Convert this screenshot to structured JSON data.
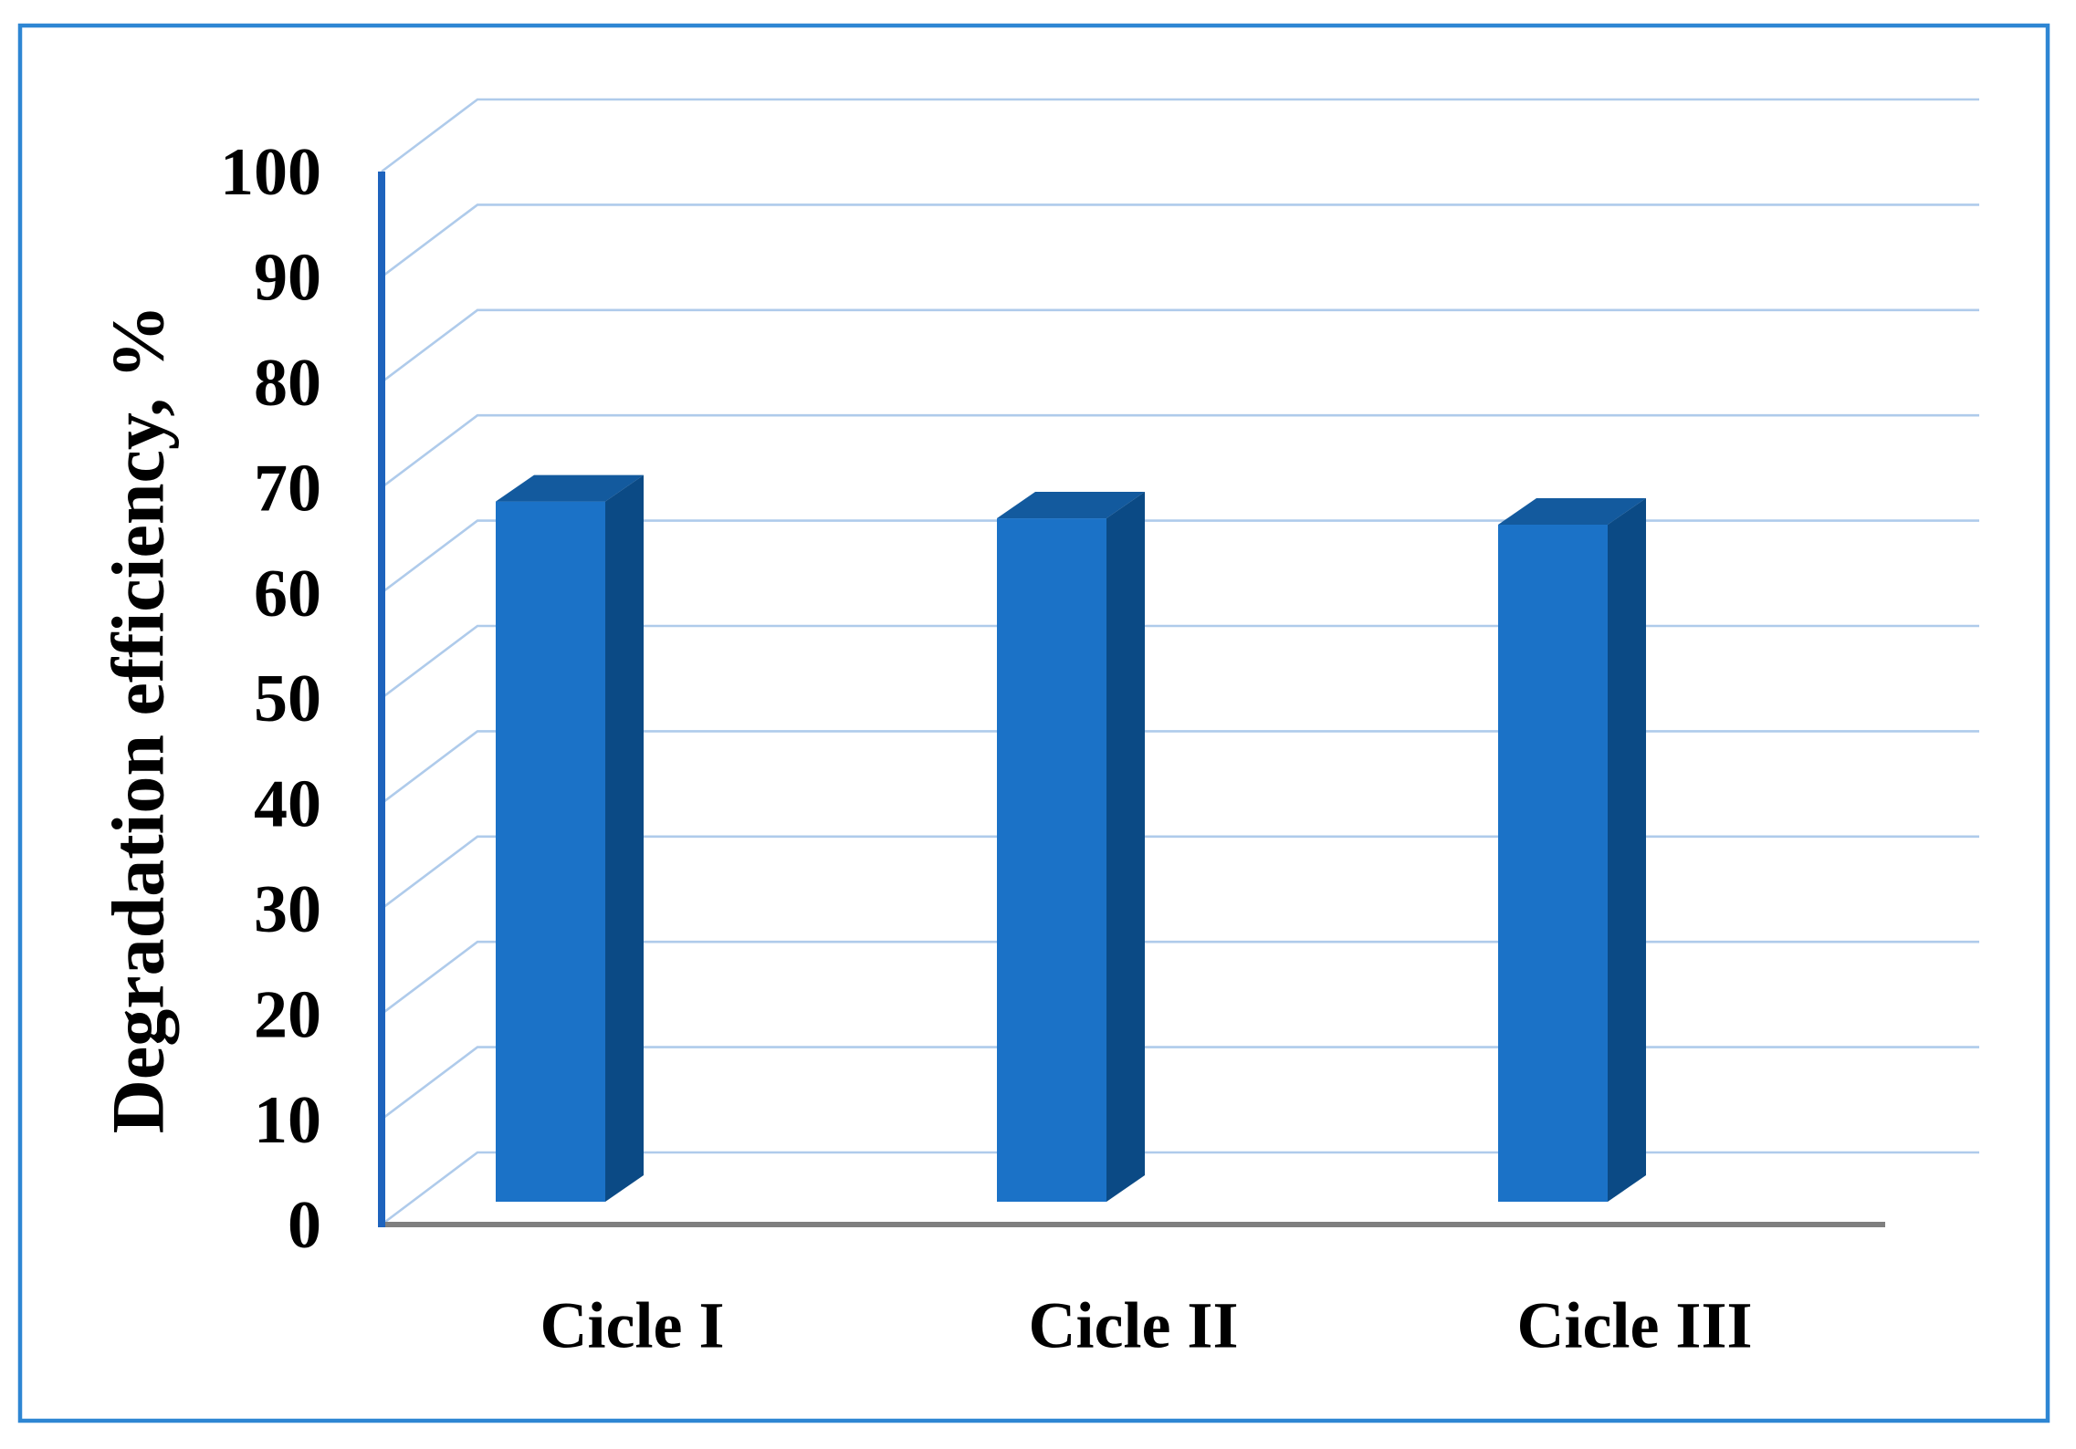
{
  "figure": {
    "background_color": "#ffffff",
    "border_color": "#2e86d3"
  },
  "chart_data": {
    "type": "bar",
    "style": "3d-column",
    "title": "",
    "xlabel": "",
    "ylabel": "Degradation efficiency, %",
    "categories": [
      "Cicle I",
      "Cicle II",
      "Cicle III"
    ],
    "values": [
      66.5,
      64.9,
      64.3
    ],
    "series": [
      {
        "name": "Degradation efficiency",
        "values": [
          66.5,
          64.9,
          64.3
        ]
      }
    ],
    "ylim": [
      0,
      100
    ],
    "ytick_step": 10,
    "yticks": [
      0,
      10,
      20,
      30,
      40,
      50,
      60,
      70,
      80,
      90,
      100
    ],
    "grid": true,
    "legend": "none",
    "colors": {
      "bar_front": "#1b72c7",
      "bar_top": "#135a9e",
      "bar_side": "#0b4a85",
      "gridline": "#afcbeb",
      "y_axis_line": "#1e63bd",
      "floor_line": "#7f7f7f",
      "text": "#000000"
    }
  }
}
